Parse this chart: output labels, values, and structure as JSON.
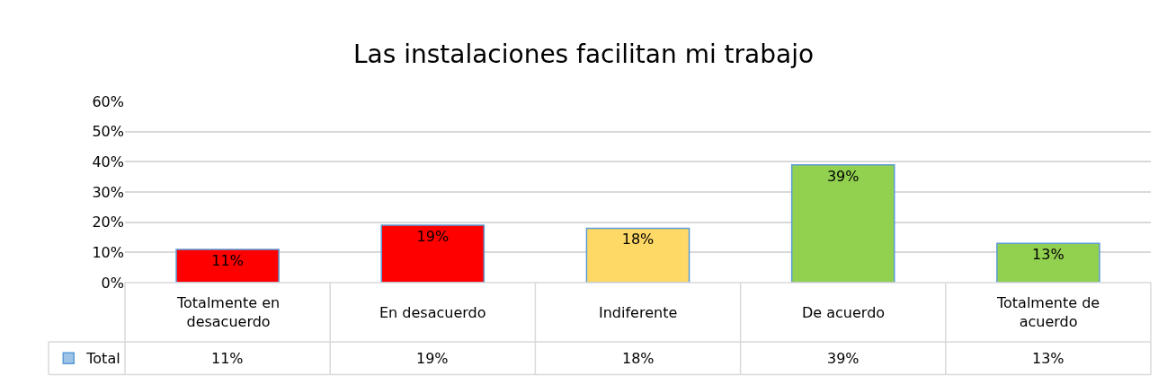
{
  "chart_data": {
    "type": "bar",
    "title": "Las instalaciones facilitan mi trabajo",
    "categories": [
      "Totalmente en desacuerdo",
      "En desacuerdo",
      "Indiferente",
      "De acuerdo",
      "Totalmente de acuerdo"
    ],
    "series": [
      {
        "name": "Total",
        "color": "#9dc3e6",
        "colors": [
          "#ff0000",
          "#ff0000",
          "#ffd966",
          "#92d050",
          "#92d050"
        ],
        "values": [
          11,
          19,
          18,
          39,
          13
        ],
        "value_labels": [
          "11%",
          "19%",
          "18%",
          "39%",
          "13%"
        ]
      }
    ],
    "ylim": [
      0,
      60
    ],
    "yticks": [
      {
        "value": 0,
        "label": "0%"
      },
      {
        "value": 10,
        "label": "10%"
      },
      {
        "value": 20,
        "label": "20%"
      },
      {
        "value": 30,
        "label": "30%"
      },
      {
        "value": 40,
        "label": "40%"
      },
      {
        "value": 50,
        "label": "50%"
      },
      {
        "value": 60,
        "label": "60%"
      }
    ],
    "grid": "y",
    "legend": "bottom left"
  }
}
